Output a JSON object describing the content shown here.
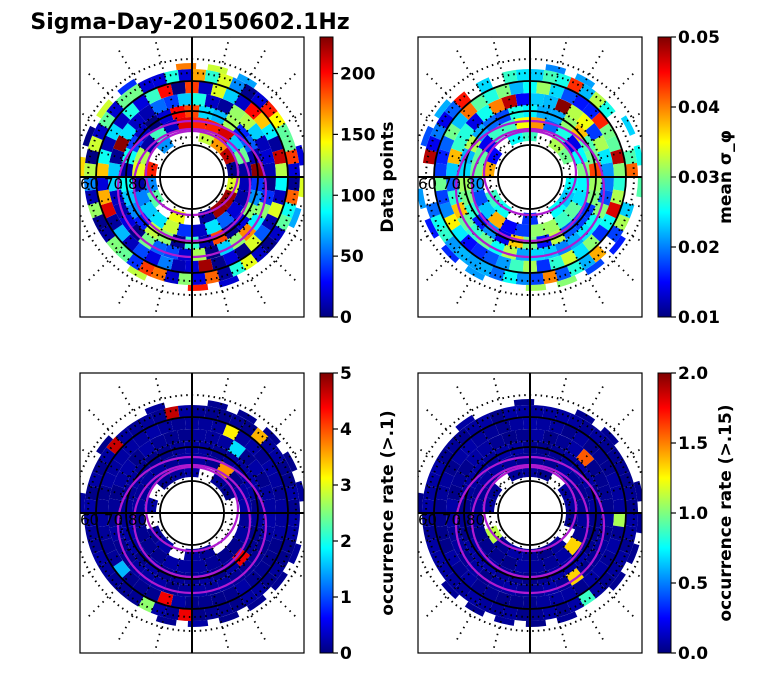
{
  "title": "Sigma-Day-20150602.1Hz",
  "lat_labels": [
    "60",
    "70",
    "80"
  ],
  "colors": {
    "jet": [
      "#00007f",
      "#0000ff",
      "#007fff",
      "#00ffff",
      "#7fff7f",
      "#ffff00",
      "#ff7f00",
      "#ff0000",
      "#7f0000"
    ],
    "grid": "#000000",
    "contour": "#b01ad0",
    "frame": "#000000"
  },
  "chart_data": [
    {
      "type": "heatmap",
      "title": "",
      "colorbar": {
        "label": "Data points",
        "range": [
          0,
          230
        ],
        "ticks": [
          "0",
          "50",
          "100",
          "150",
          "200"
        ],
        "tick_values": [
          0,
          50,
          100,
          150,
          200
        ]
      },
      "lat_ticks": [
        "60",
        "70",
        "80"
      ]
    },
    {
      "type": "heatmap",
      "title": "",
      "colorbar": {
        "label": "mean σ_φ",
        "range": [
          0.01,
          0.05
        ],
        "ticks": [
          "0.01",
          "0.02",
          "0.03",
          "0.04",
          "0.05"
        ],
        "tick_values": [
          0.01,
          0.02,
          0.03,
          0.04,
          0.05
        ]
      },
      "lat_ticks": [
        "60",
        "70",
        "80"
      ]
    },
    {
      "type": "heatmap",
      "title": "",
      "colorbar": {
        "label": "occurrence rate (>.1)",
        "range": [
          0,
          5
        ],
        "ticks": [
          "0",
          "1",
          "2",
          "3",
          "4",
          "5"
        ],
        "tick_values": [
          0,
          1,
          2,
          3,
          4,
          5
        ]
      },
      "lat_ticks": [
        "60",
        "70",
        "80"
      ]
    },
    {
      "type": "heatmap",
      "title": "",
      "colorbar": {
        "label": "occurrence rate (>.15)",
        "range": [
          0,
          2
        ],
        "ticks": [
          "0.0",
          "0.5",
          "1.0",
          "1.5",
          "2.0"
        ],
        "tick_values": [
          0,
          0.5,
          1.0,
          1.5,
          2.0
        ]
      },
      "lat_ticks": [
        "60",
        "70",
        "80"
      ]
    }
  ]
}
